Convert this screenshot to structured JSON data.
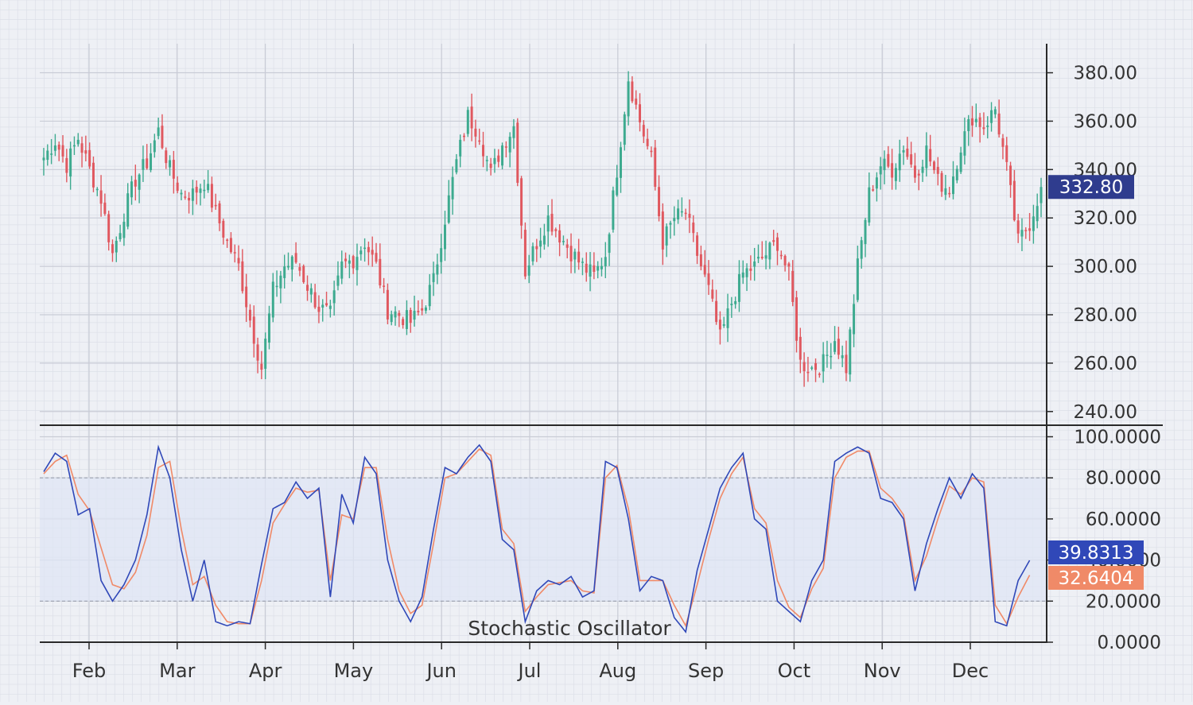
{
  "colors": {
    "background": "#eef0f5",
    "grid_major": "#c9ccd6",
    "grid_minor": "#dcdfe8",
    "up": "#3daa8f",
    "down": "#e0585f",
    "axis": "#2a2a2a",
    "price_tag": "#2f3c8e",
    "k_line": "#3048b8",
    "d_line": "#f08a68",
    "band_fill": "#dfe6f4",
    "band_line": "#9aa0ae"
  },
  "x_axis": {
    "months": [
      "Feb",
      "Mar",
      "Apr",
      "May",
      "Jun",
      "Jul",
      "Aug",
      "Sep",
      "Oct",
      "Nov",
      "Dec"
    ]
  },
  "price_panel": {
    "ticks": [
      "380.00",
      "360.00",
      "340.00",
      "320.00",
      "300.00",
      "280.00",
      "260.00",
      "240.00"
    ],
    "last_price": "332.80"
  },
  "oscillator_panel": {
    "title": "Stochastic Oscillator",
    "ticks": [
      "100.0000",
      "80.0000",
      "60.0000",
      "40.0000",
      "20.0000",
      "0.0000"
    ],
    "k_value": "39.8313",
    "d_value": "32.6404"
  },
  "chart_data": [
    {
      "type": "candlestick",
      "x_unit": "trading day (month of year)",
      "ylim": [
        235,
        392
      ],
      "anchors": [
        [
          0,
          345
        ],
        [
          3,
          352
        ],
        [
          6,
          342
        ],
        [
          9,
          353
        ],
        [
          12,
          340
        ],
        [
          15,
          328
        ],
        [
          18,
          305
        ],
        [
          21,
          322
        ],
        [
          24,
          336
        ],
        [
          27,
          343
        ],
        [
          30,
          356
        ],
        [
          33,
          340
        ],
        [
          36,
          330
        ],
        [
          39,
          330
        ],
        [
          42,
          335
        ],
        [
          45,
          322
        ],
        [
          48,
          310
        ],
        [
          51,
          300
        ],
        [
          54,
          278
        ],
        [
          57,
          258
        ],
        [
          60,
          290
        ],
        [
          63,
          300
        ],
        [
          66,
          302
        ],
        [
          69,
          292
        ],
        [
          72,
          283
        ],
        [
          75,
          280
        ],
        [
          78,
          300
        ],
        [
          81,
          303
        ],
        [
          84,
          310
        ],
        [
          87,
          300
        ],
        [
          90,
          282
        ],
        [
          93,
          280
        ],
        [
          96,
          277
        ],
        [
          99,
          282
        ],
        [
          102,
          294
        ],
        [
          105,
          320
        ],
        [
          108,
          343
        ],
        [
          111,
          362
        ],
        [
          114,
          355
        ],
        [
          117,
          338
        ],
        [
          120,
          350
        ],
        [
          123,
          358
        ],
        [
          126,
          298
        ],
        [
          129,
          310
        ],
        [
          132,
          320
        ],
        [
          135,
          313
        ],
        [
          138,
          306
        ],
        [
          141,
          300
        ],
        [
          144,
          296
        ],
        [
          147,
          305
        ],
        [
          150,
          340
        ],
        [
          153,
          378
        ],
        [
          156,
          360
        ],
        [
          159,
          344
        ],
        [
          162,
          310
        ],
        [
          165,
          320
        ],
        [
          168,
          322
        ],
        [
          171,
          305
        ],
        [
          174,
          290
        ],
        [
          177,
          270
        ],
        [
          180,
          285
        ],
        [
          183,
          297
        ],
        [
          186,
          300
        ],
        [
          189,
          305
        ],
        [
          192,
          310
        ],
        [
          195,
          296
        ],
        [
          198,
          260
        ],
        [
          201,
          258
        ],
        [
          204,
          260
        ],
        [
          207,
          270
        ],
        [
          210,
          258
        ],
        [
          213,
          300
        ],
        [
          216,
          330
        ],
        [
          219,
          342
        ],
        [
          222,
          340
        ],
        [
          225,
          350
        ],
        [
          228,
          338
        ],
        [
          231,
          348
        ],
        [
          234,
          335
        ],
        [
          237,
          332
        ],
        [
          240,
          350
        ],
        [
          243,
          362
        ],
        [
          246,
          358
        ],
        [
          249,
          365
        ],
        [
          252,
          340
        ],
        [
          255,
          310
        ],
        [
          258,
          318
        ],
        [
          261,
          332.8
        ]
      ],
      "last_price": 332.8
    },
    {
      "type": "line",
      "title": "Stochastic Oscillator",
      "ylim": [
        0,
        100
      ],
      "bands": [
        20,
        80
      ],
      "series": [
        {
          "role": "%K",
          "points": [
            [
              0,
              83
            ],
            [
              3,
              92
            ],
            [
              6,
              88
            ],
            [
              9,
              62
            ],
            [
              12,
              65
            ],
            [
              15,
              30
            ],
            [
              18,
              20
            ],
            [
              21,
              28
            ],
            [
              24,
              40
            ],
            [
              27,
              62
            ],
            [
              30,
              95
            ],
            [
              33,
              80
            ],
            [
              36,
              45
            ],
            [
              39,
              20
            ],
            [
              42,
              40
            ],
            [
              45,
              10
            ],
            [
              48,
              8
            ],
            [
              51,
              10
            ],
            [
              54,
              9
            ],
            [
              57,
              38
            ],
            [
              60,
              65
            ],
            [
              63,
              68
            ],
            [
              66,
              78
            ],
            [
              69,
              70
            ],
            [
              72,
              75
            ],
            [
              75,
              22
            ],
            [
              78,
              72
            ],
            [
              81,
              58
            ],
            [
              84,
              90
            ],
            [
              87,
              82
            ],
            [
              90,
              40
            ],
            [
              93,
              20
            ],
            [
              96,
              10
            ],
            [
              99,
              22
            ],
            [
              102,
              55
            ],
            [
              105,
              85
            ],
            [
              108,
              82
            ],
            [
              111,
              90
            ],
            [
              114,
              96
            ],
            [
              117,
              88
            ],
            [
              120,
              50
            ],
            [
              123,
              45
            ],
            [
              126,
              10
            ],
            [
              129,
              25
            ],
            [
              132,
              30
            ],
            [
              135,
              28
            ],
            [
              138,
              32
            ],
            [
              141,
              22
            ],
            [
              144,
              25
            ],
            [
              147,
              88
            ],
            [
              150,
              85
            ],
            [
              153,
              60
            ],
            [
              156,
              25
            ],
            [
              159,
              32
            ],
            [
              162,
              30
            ],
            [
              165,
              12
            ],
            [
              168,
              5
            ],
            [
              171,
              35
            ],
            [
              174,
              55
            ],
            [
              177,
              75
            ],
            [
              180,
              85
            ],
            [
              183,
              92
            ],
            [
              186,
              60
            ],
            [
              189,
              55
            ],
            [
              192,
              20
            ],
            [
              195,
              15
            ],
            [
              198,
              10
            ],
            [
              201,
              30
            ],
            [
              204,
              40
            ],
            [
              207,
              88
            ],
            [
              210,
              92
            ],
            [
              213,
              95
            ],
            [
              216,
              92
            ],
            [
              219,
              70
            ],
            [
              222,
              68
            ],
            [
              225,
              60
            ],
            [
              228,
              25
            ],
            [
              231,
              48
            ],
            [
              234,
              65
            ],
            [
              237,
              80
            ],
            [
              240,
              70
            ],
            [
              243,
              82
            ],
            [
              246,
              75
            ],
            [
              249,
              10
            ],
            [
              252,
              8
            ],
            [
              255,
              30
            ],
            [
              258,
              39.8313
            ]
          ],
          "last": 39.8313
        },
        {
          "role": "%D",
          "points": [
            [
              0,
              82
            ],
            [
              3,
              88
            ],
            [
              6,
              91
            ],
            [
              9,
              72
            ],
            [
              12,
              64
            ],
            [
              15,
              46
            ],
            [
              18,
              28
            ],
            [
              21,
              26
            ],
            [
              24,
              34
            ],
            [
              27,
              52
            ],
            [
              30,
              85
            ],
            [
              33,
              88
            ],
            [
              36,
              55
            ],
            [
              39,
              28
            ],
            [
              42,
              32
            ],
            [
              45,
              18
            ],
            [
              48,
              10
            ],
            [
              51,
              9
            ],
            [
              54,
              9
            ],
            [
              57,
              30
            ],
            [
              60,
              58
            ],
            [
              63,
              67
            ],
            [
              66,
              75
            ],
            [
              69,
              73
            ],
            [
              72,
              74
            ],
            [
              75,
              30
            ],
            [
              78,
              62
            ],
            [
              81,
              60
            ],
            [
              84,
              85
            ],
            [
              87,
              85
            ],
            [
              90,
              50
            ],
            [
              93,
              25
            ],
            [
              96,
              14
            ],
            [
              99,
              18
            ],
            [
              102,
              48
            ],
            [
              105,
              80
            ],
            [
              108,
              82
            ],
            [
              111,
              88
            ],
            [
              114,
              94
            ],
            [
              117,
              91
            ],
            [
              120,
              55
            ],
            [
              123,
              48
            ],
            [
              126,
              15
            ],
            [
              129,
              22
            ],
            [
              132,
              28
            ],
            [
              135,
              29
            ],
            [
              138,
              30
            ],
            [
              141,
              25
            ],
            [
              144,
              24
            ],
            [
              147,
              80
            ],
            [
              150,
              86
            ],
            [
              153,
              65
            ],
            [
              156,
              30
            ],
            [
              159,
              30
            ],
            [
              162,
              30
            ],
            [
              165,
              18
            ],
            [
              168,
              8
            ],
            [
              171,
              28
            ],
            [
              174,
              50
            ],
            [
              177,
              70
            ],
            [
              180,
              82
            ],
            [
              183,
              90
            ],
            [
              186,
              65
            ],
            [
              189,
              58
            ],
            [
              192,
              30
            ],
            [
              195,
              17
            ],
            [
              198,
              12
            ],
            [
              201,
              26
            ],
            [
              204,
              36
            ],
            [
              207,
              80
            ],
            [
              210,
              90
            ],
            [
              213,
              93
            ],
            [
              216,
              93
            ],
            [
              219,
              75
            ],
            [
              222,
              70
            ],
            [
              225,
              62
            ],
            [
              228,
              30
            ],
            [
              231,
              42
            ],
            [
              234,
              60
            ],
            [
              237,
              76
            ],
            [
              240,
              72
            ],
            [
              243,
              80
            ],
            [
              246,
              78
            ],
            [
              249,
              18
            ],
            [
              252,
              9
            ],
            [
              255,
              22
            ],
            [
              258,
              32.6404
            ]
          ],
          "last": 32.6404
        }
      ]
    }
  ]
}
